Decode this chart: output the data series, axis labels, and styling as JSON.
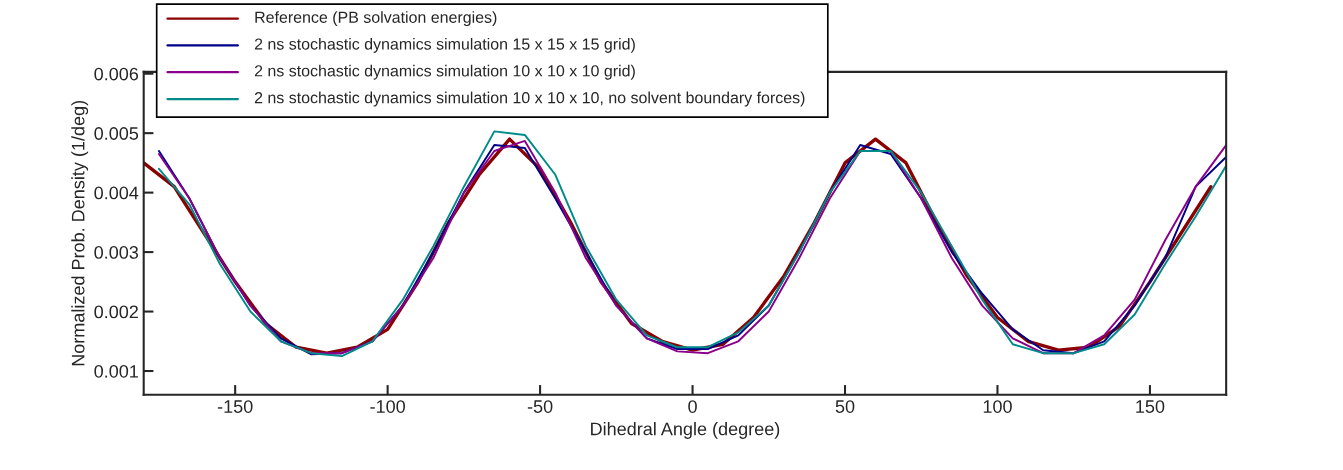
{
  "chart_data": {
    "type": "line",
    "xlabel": "Dihedral Angle (degree)",
    "ylabel": "Normalized Prob. Density (1/deg)",
    "xlim": [
      -180,
      175
    ],
    "xticks": [
      -150,
      -100,
      -50,
      0,
      50,
      100,
      150
    ],
    "ylim": [
      0.0006,
      0.00603
    ],
    "yticks": [
      0.001,
      0.002,
      0.003,
      0.004,
      0.005,
      0.006
    ],
    "grid": false,
    "legend": "top left",
    "marker": "none",
    "line_style": "solid",
    "series": [
      {
        "name": "Reference (PB solvation energies)",
        "color": "#8b0000",
        "x": [
          -180,
          -170,
          -160,
          -150,
          -140,
          -130,
          -120,
          -110,
          -100,
          -90,
          -80,
          -70,
          -60,
          -50,
          -40,
          -30,
          -20,
          -10,
          0,
          10,
          20,
          30,
          40,
          50,
          60,
          70,
          80,
          90,
          100,
          110,
          120,
          130,
          140,
          150,
          160,
          170
        ],
        "values": [
          0.0045,
          0.0041,
          0.0033,
          0.0025,
          0.0018,
          0.0014,
          0.0013,
          0.0014,
          0.0017,
          0.0025,
          0.0035,
          0.0043,
          0.0049,
          0.0044,
          0.0035,
          0.0025,
          0.0018,
          0.0015,
          0.00135,
          0.00145,
          0.0019,
          0.0026,
          0.0035,
          0.0045,
          0.0049,
          0.0045,
          0.0035,
          0.0026,
          0.0019,
          0.0015,
          0.00135,
          0.0014,
          0.00175,
          0.0025,
          0.0033,
          0.0041
        ]
      },
      {
        "name": "2 ns stochastic dynamics simulation 15 x 15 x 15 grid)",
        "color": "#00008b",
        "x": [
          -175,
          -165,
          -155,
          -145,
          -135,
          -125,
          -115,
          -105,
          -95,
          -85,
          -75,
          -65,
          -55,
          -45,
          -35,
          -25,
          -15,
          -5,
          5,
          15,
          25,
          35,
          45,
          55,
          65,
          75,
          85,
          95,
          105,
          115,
          125,
          135,
          145,
          155,
          165,
          175
        ],
        "values": [
          0.0047,
          0.0039,
          0.0029,
          0.0021,
          0.00155,
          0.00128,
          0.0013,
          0.0015,
          0.0021,
          0.003,
          0.004,
          0.0048,
          0.00475,
          0.0039,
          0.003,
          0.0021,
          0.00155,
          0.00137,
          0.00137,
          0.0016,
          0.0021,
          0.003,
          0.004,
          0.0048,
          0.00465,
          0.0039,
          0.003,
          0.0023,
          0.0017,
          0.00135,
          0.0013,
          0.0015,
          0.0021,
          0.0029,
          0.0041,
          0.0046
        ]
      },
      {
        "name": "2 ns stochastic dynamics simulation 10 x 10 x 10 grid)",
        "color": "#8b008b",
        "x": [
          -175,
          -165,
          -155,
          -145,
          -135,
          -125,
          -115,
          -105,
          -95,
          -85,
          -75,
          -65,
          -55,
          -45,
          -35,
          -25,
          -15,
          -5,
          5,
          15,
          25,
          35,
          45,
          55,
          65,
          75,
          85,
          95,
          105,
          115,
          125,
          135,
          145,
          155,
          165,
          175
        ],
        "values": [
          0.00465,
          0.0039,
          0.0029,
          0.0021,
          0.0015,
          0.0013,
          0.0013,
          0.0015,
          0.0021,
          0.0029,
          0.004,
          0.0047,
          0.00487,
          0.004,
          0.0029,
          0.0021,
          0.00155,
          0.00133,
          0.0013,
          0.0015,
          0.002,
          0.0029,
          0.0039,
          0.0047,
          0.0047,
          0.0039,
          0.0029,
          0.0021,
          0.00155,
          0.0013,
          0.0013,
          0.0016,
          0.0022,
          0.0032,
          0.0041,
          0.0048
        ]
      },
      {
        "name": "2 ns stochastic dynamics simulation 10 x 10 x 10, no solvent boundary forces)",
        "color": "#008b8b",
        "x": [
          -175,
          -165,
          -155,
          -145,
          -135,
          -125,
          -115,
          -105,
          -95,
          -85,
          -75,
          -65,
          -55,
          -45,
          -35,
          -25,
          -15,
          -5,
          5,
          15,
          25,
          35,
          45,
          55,
          65,
          75,
          85,
          95,
          105,
          115,
          125,
          135,
          145,
          155,
          165,
          175
        ],
        "values": [
          0.0044,
          0.0038,
          0.0028,
          0.002,
          0.0015,
          0.0013,
          0.00125,
          0.0015,
          0.0022,
          0.0031,
          0.0041,
          0.00503,
          0.00497,
          0.0043,
          0.0031,
          0.0022,
          0.0016,
          0.0014,
          0.0014,
          0.00165,
          0.0021,
          0.003,
          0.004,
          0.0047,
          0.0047,
          0.004,
          0.0031,
          0.0022,
          0.00145,
          0.0013,
          0.0013,
          0.00145,
          0.00195,
          0.0028,
          0.0036,
          0.00445
        ]
      }
    ]
  }
}
